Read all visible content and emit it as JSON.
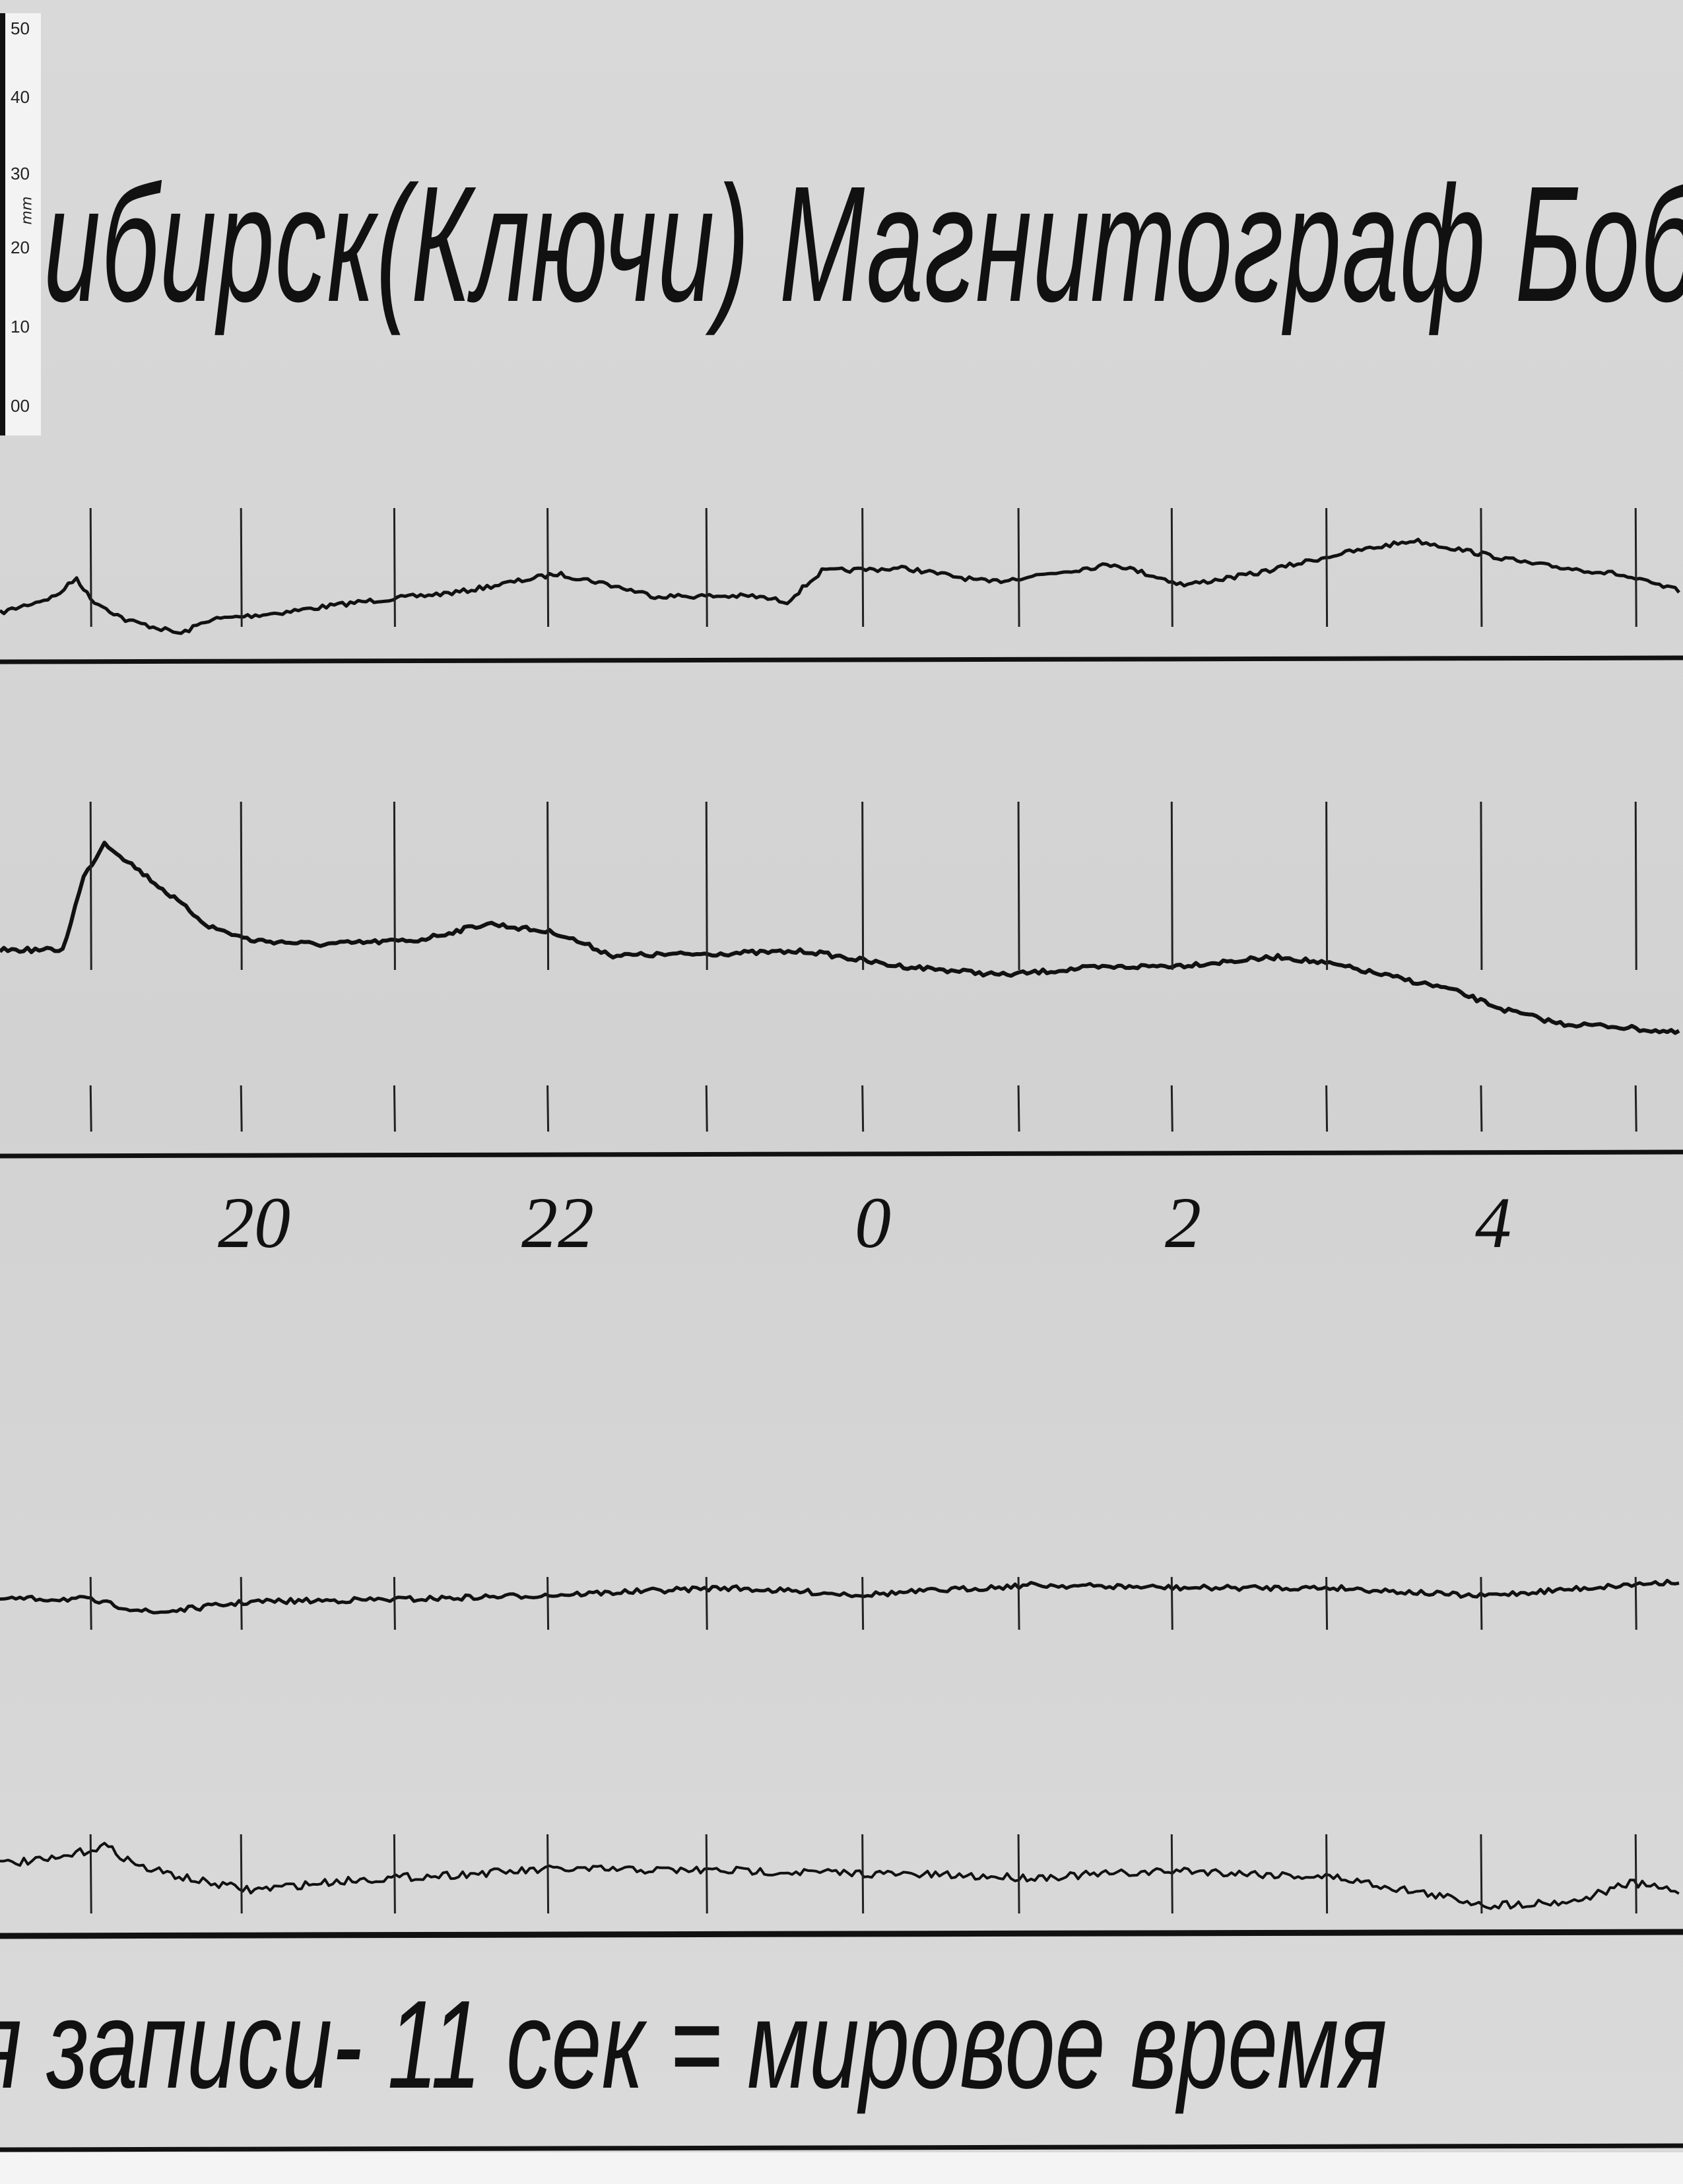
{
  "title": "ибирск(Ключи) Магнитограф Бобров",
  "ruler": {
    "labels": [
      "50",
      "40",
      "30",
      "20",
      "10",
      "00"
    ],
    "unit": "mm"
  },
  "hour_labels": [
    "20",
    "22",
    "0",
    "2",
    "4"
  ],
  "footer_note": "я  записи- 11 сек = мировое  время",
  "colors": {
    "paper": "#d7d7d7",
    "ink": "#111111"
  }
}
